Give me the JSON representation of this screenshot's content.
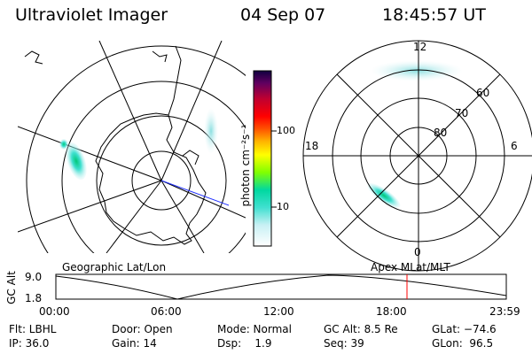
{
  "header": {
    "title": "Ultraviolet Imager",
    "date": "04 Sep 07",
    "time": "18:45:57 UT"
  },
  "geo_panel": {
    "label": "Geographic Lat/Lon"
  },
  "mag_panel": {
    "label": "Apex MLat/MLT",
    "mlt_labels": [
      "12",
      "18",
      "6",
      "0"
    ],
    "lat_labels": [
      "60",
      "70",
      "80"
    ]
  },
  "colorbar": {
    "unit_label": "photon cm⁻²s⁻¹",
    "tick_labels": [
      "100",
      "10"
    ]
  },
  "timeline": {
    "axis_label": "GC Alt",
    "y_labels": [
      "9.0",
      "1.8"
    ],
    "x_labels": [
      "00:00",
      "06:00",
      "12:00",
      "18:00",
      "23:59"
    ],
    "current_time_marker_color": "#ff0000"
  },
  "info": {
    "filter": "Flt: LBHL",
    "ip": "IP: 36.0",
    "door": "Door: Open",
    "gain": "Gain: 14",
    "mode": "Mode: Normal",
    "dsp": "Dsp:    1.9",
    "gc_alt": "GC Alt: 8.5 Re",
    "seq": "Seq: 39",
    "glat": "GLat: −74.6",
    "glon": "GLon:  96.5"
  }
}
